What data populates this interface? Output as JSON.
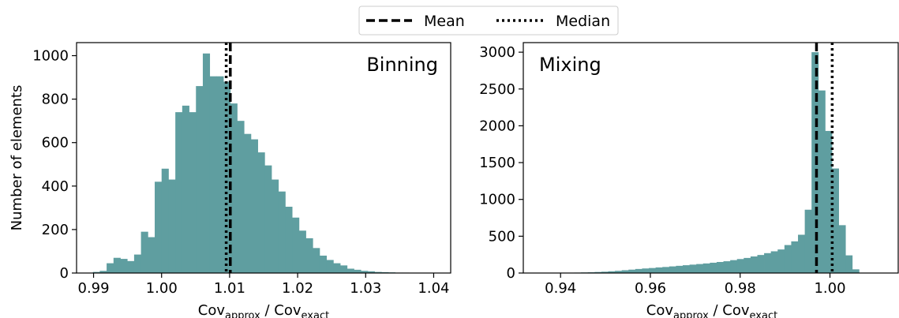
{
  "legend": {
    "placement": "top-center",
    "items": [
      {
        "label": "Mean",
        "style": "dashed"
      },
      {
        "label": "Median",
        "style": "dotted"
      }
    ]
  },
  "chart_data": [
    {
      "type": "histogram",
      "title": "Binning",
      "xlabel": {
        "base": "Cov",
        "sub1": "approx",
        "sep": " / Cov",
        "sub2": "exact"
      },
      "ylabel": "Number of elements",
      "xlim": [
        0.9875,
        1.0425
      ],
      "ylim": [
        0,
        1060
      ],
      "xticks": [
        0.99,
        1.0,
        1.01,
        1.02,
        1.03,
        1.04
      ],
      "xtick_labels": [
        "0.99",
        "1.00",
        "1.01",
        "1.02",
        "1.03",
        "1.04"
      ],
      "yticks": [
        0,
        200,
        400,
        600,
        800,
        1000
      ],
      "ytick_labels": [
        "0",
        "200",
        "400",
        "600",
        "800",
        "1000"
      ],
      "bin_start": 0.9899,
      "bin_width": 0.00101,
      "values": [
        5,
        10,
        45,
        70,
        65,
        55,
        85,
        190,
        165,
        420,
        480,
        430,
        740,
        770,
        740,
        860,
        1010,
        905,
        905,
        880,
        780,
        700,
        640,
        615,
        555,
        495,
        430,
        375,
        305,
        255,
        195,
        160,
        115,
        80,
        60,
        45,
        35,
        20,
        15,
        10,
        8,
        5,
        4,
        3,
        2,
        2,
        1,
        1,
        1,
        1
      ],
      "mean": 1.0101,
      "median": 1.0095,
      "color": "#5f9ea0",
      "grid": false
    },
    {
      "type": "histogram",
      "title": "Mixing",
      "xlabel": {
        "base": "Cov",
        "sub1": "approx",
        "sep": " / Cov",
        "sub2": "exact"
      },
      "ylabel": "",
      "xlim": [
        0.9317,
        1.0152
      ],
      "ylim": [
        0,
        3130
      ],
      "xticks": [
        0.94,
        0.96,
        0.98,
        1.0
      ],
      "xtick_labels": [
        "0.94",
        "0.96",
        "0.98",
        "1.00"
      ],
      "yticks": [
        0,
        500,
        1000,
        1500,
        2000,
        2500,
        3000
      ],
      "ytick_labels": [
        "0",
        "500",
        "1000",
        "1500",
        "2000",
        "2500",
        "3000"
      ],
      "bin_start": 0.9355,
      "bin_width": 0.00151,
      "values": [
        2,
        3,
        3,
        4,
        5,
        6,
        8,
        10,
        14,
        18,
        24,
        30,
        38,
        46,
        55,
        62,
        68,
        76,
        82,
        90,
        98,
        106,
        114,
        122,
        130,
        140,
        150,
        160,
        175,
        190,
        205,
        225,
        245,
        270,
        295,
        320,
        380,
        430,
        520,
        860,
        3000,
        2480,
        1930,
        1420,
        650,
        240,
        50
      ],
      "mean": 0.997,
      "median": 1.0005,
      "color": "#5f9ea0",
      "grid": false
    }
  ]
}
